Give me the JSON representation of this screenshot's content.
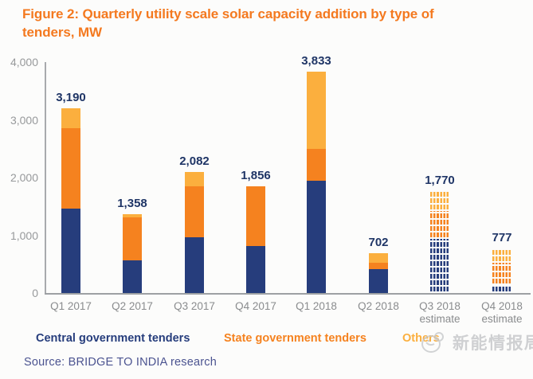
{
  "header": {
    "title_line1": "Figure 2: Quarterly utility scale solar capacity addition by type of",
    "title_line2": "tenders, MW"
  },
  "footer": {
    "source": "Source: BRIDGE TO INDIA research"
  },
  "watermark": {
    "icon": "mascot-icon",
    "text": "新能情报局"
  },
  "colors": {
    "title": "#F4791F",
    "central": "#263D7C",
    "state": "#F5821F",
    "others": "#FBAF3E",
    "value_label": "#1F3566",
    "axis_text": "#97999B",
    "source_text": "#4B5390"
  },
  "legend": [
    {
      "label": "Central government tenders",
      "color": "#263D7C"
    },
    {
      "label": "State government tenders",
      "color": "#F5821F"
    },
    {
      "label": "Others",
      "color": "#FBAF3E"
    }
  ],
  "chart_data": {
    "type": "bar",
    "stacked": true,
    "title": "Figure 2: Quarterly utility scale solar capacity addition by type of tenders, MW",
    "unit": "MW",
    "xlabel": "",
    "ylabel": "",
    "ylim": [
      0,
      4000
    ],
    "grid": false,
    "legend_position": "bottom",
    "yticks": [
      "4,000",
      "3,000",
      "2,000",
      "1,000",
      "0"
    ],
    "categories": [
      {
        "label": "Q1 2017",
        "sublabel": "",
        "estimate": false
      },
      {
        "label": "Q2 2017",
        "sublabel": "",
        "estimate": false
      },
      {
        "label": "Q3 2017",
        "sublabel": "",
        "estimate": false
      },
      {
        "label": "Q4 2017",
        "sublabel": "",
        "estimate": false
      },
      {
        "label": "Q1 2018",
        "sublabel": "",
        "estimate": false
      },
      {
        "label": "Q2 2018",
        "sublabel": "",
        "estimate": false
      },
      {
        "label": "Q3 2018",
        "sublabel": "estimate",
        "estimate": true
      },
      {
        "label": "Q4 2018",
        "sublabel": "estimate",
        "estimate": true
      }
    ],
    "series": [
      {
        "name": "Central government tenders",
        "color": "#263D7C",
        "values": [
          1460,
          560,
          960,
          820,
          1945,
          420,
          940,
          143
        ]
      },
      {
        "name": "State government tenders",
        "color": "#F5821F",
        "values": [
          1390,
          740,
          880,
          1036,
          552,
          110,
          480,
          386
        ]
      },
      {
        "name": "Others",
        "color": "#FBAF3E",
        "values": [
          340,
          58,
          242,
          0,
          1336,
          172,
          350,
          248
        ]
      }
    ],
    "totals": [
      3190,
      1358,
      2082,
      1856,
      3833,
      702,
      1770,
      777
    ],
    "total_labels": [
      "3,190",
      "1,358",
      "2,082",
      "1,856",
      "3,833",
      "702",
      "1,770",
      "777"
    ],
    "note": "Q3 2018 and Q4 2018 bars are dashed estimates; per-series values estimated from segment heights"
  }
}
